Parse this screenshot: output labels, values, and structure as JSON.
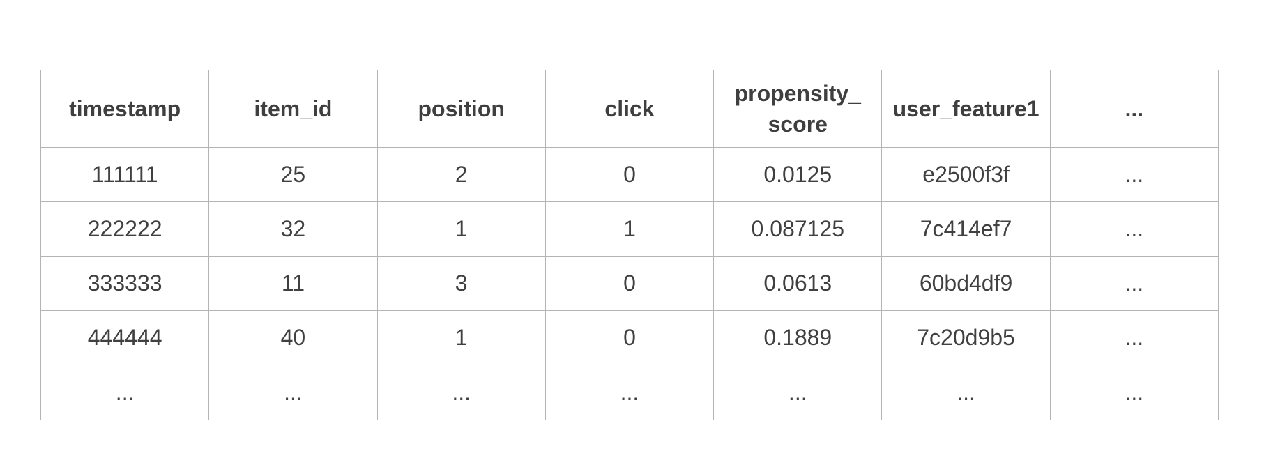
{
  "table": {
    "headers": [
      "timestamp",
      "item_id",
      "position",
      "click",
      "propensity_\nscore",
      "user_feature1",
      "..."
    ],
    "header_lines": [
      [
        "timestamp"
      ],
      [
        "item_id"
      ],
      [
        "position"
      ],
      [
        "click"
      ],
      [
        "propensity_",
        "score"
      ],
      [
        "user_feature1"
      ],
      [
        "..."
      ]
    ],
    "rows": [
      [
        "111111",
        "25",
        "2",
        "0",
        "0.0125",
        "e2500f3f",
        "..."
      ],
      [
        "222222",
        "32",
        "1",
        "1",
        "0.087125",
        "7c414ef7",
        "..."
      ],
      [
        "333333",
        "11",
        "3",
        "0",
        "0.0613",
        "60bd4df9",
        "..."
      ],
      [
        "444444",
        "40",
        "1",
        "0",
        "0.1889",
        "7c20d9b5",
        "..."
      ],
      [
        "...",
        "...",
        "...",
        "...",
        "...",
        "...",
        "..."
      ]
    ]
  },
  "colors": {
    "text": "#404040",
    "border": "#b4b4b4",
    "background": "#ffffff"
  }
}
